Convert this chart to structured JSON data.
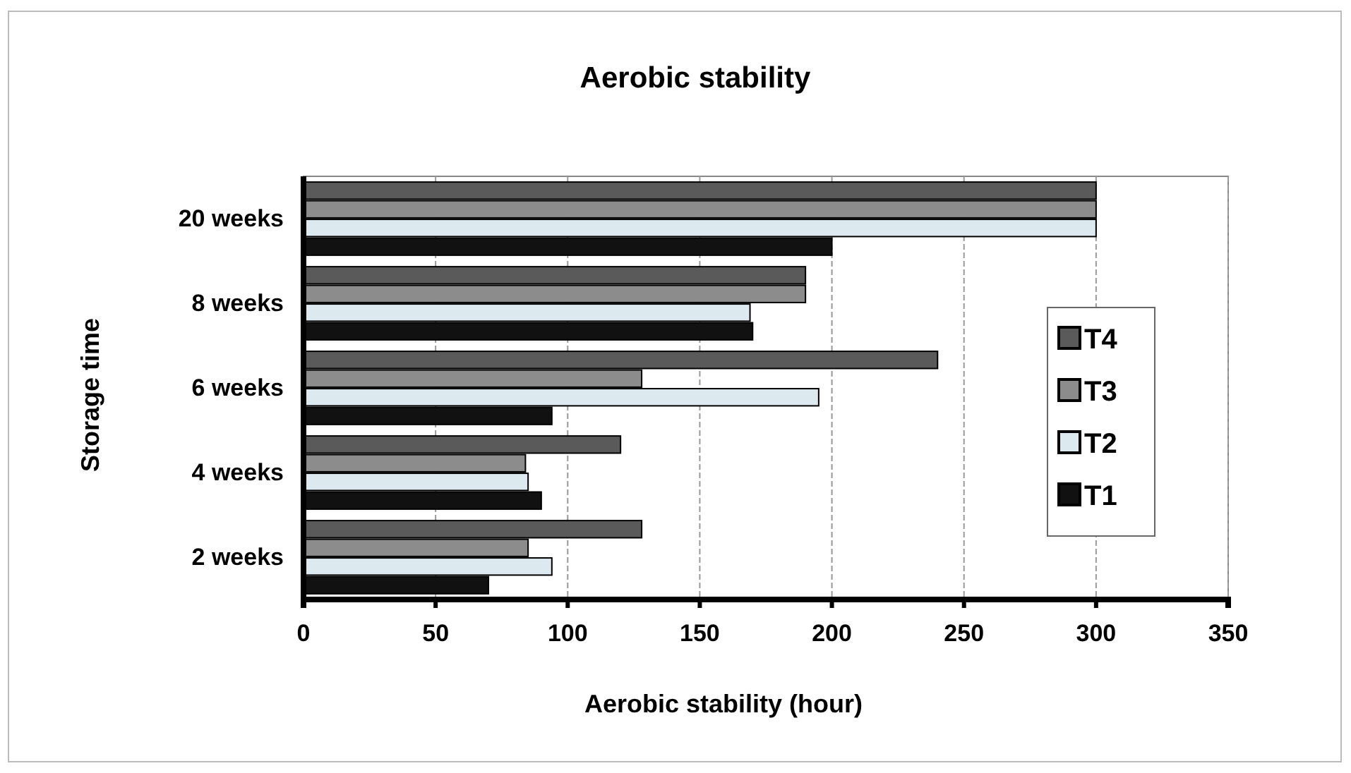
{
  "chart_data": {
    "type": "bar",
    "orientation": "horizontal",
    "title": "Aerobic stability",
    "xlabel": "Aerobic stability (hour)",
    "ylabel": "Storage time",
    "categories": [
      "20 weeks",
      "8 weeks",
      "6 weeks",
      "4 weeks",
      "2 weeks"
    ],
    "series": [
      {
        "name": "T4",
        "color": "#5a5a5a",
        "values": [
          300,
          190,
          240,
          120,
          128
        ]
      },
      {
        "name": "T3",
        "color": "#8c8c8c",
        "values": [
          300,
          190,
          128,
          84,
          85
        ]
      },
      {
        "name": "T2",
        "color": "#dce9ee",
        "values": [
          300,
          169,
          195,
          85,
          94
        ]
      },
      {
        "name": "T1",
        "color": "#111111",
        "values": [
          200,
          170,
          94,
          90,
          70
        ]
      }
    ],
    "xlim": [
      0,
      350
    ],
    "xticks": [
      0,
      50,
      100,
      150,
      200,
      250,
      300,
      350
    ],
    "grid": "x",
    "legend": "right"
  }
}
